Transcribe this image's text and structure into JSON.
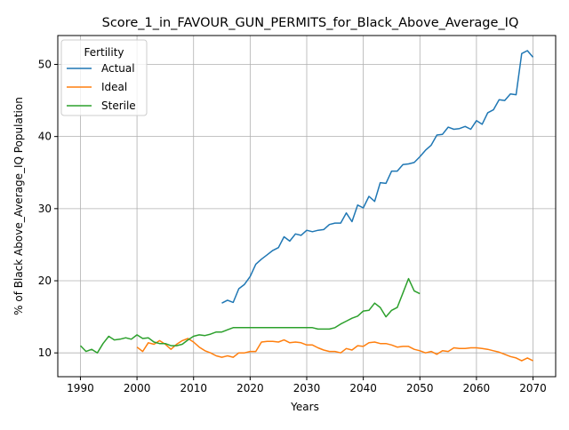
{
  "chart_data": {
    "type": "line",
    "title": "Score_1_in_FAVOUR_GUN_PERMITS_for_Black_Above_Average_IQ",
    "xlabel": "Years",
    "ylabel": "% of Black Above_Average_IQ Population",
    "xlim": [
      1986,
      2074
    ],
    "ylim": [
      6.7,
      54
    ],
    "xticks": [
      1990,
      2000,
      2010,
      2020,
      2030,
      2040,
      2050,
      2060,
      2070
    ],
    "yticks": [
      10,
      20,
      30,
      40,
      50
    ],
    "grid": true,
    "legend": {
      "title": "Fertility",
      "position": "top-left"
    },
    "series": [
      {
        "name": "Actual",
        "color": "#1f77b4",
        "x": [
          2015,
          2016,
          2017,
          2018,
          2019,
          2020,
          2021,
          2022,
          2023,
          2024,
          2025,
          2026,
          2027,
          2028,
          2029,
          2030,
          2031,
          2032,
          2033,
          2034,
          2035,
          2036,
          2037,
          2038,
          2039,
          2040,
          2041,
          2042,
          2043,
          2044,
          2045,
          2046,
          2047,
          2048,
          2049,
          2050,
          2051,
          2052,
          2053,
          2054,
          2055,
          2056,
          2057,
          2058,
          2059,
          2060,
          2061,
          2062,
          2063,
          2064,
          2065,
          2066,
          2067,
          2068,
          2069,
          2070
        ],
        "y": [
          16.9,
          17.3,
          17.0,
          18.9,
          19.5,
          20.6,
          22.3,
          23.0,
          23.6,
          24.2,
          24.6,
          26.1,
          25.5,
          26.5,
          26.3,
          27.0,
          26.8,
          27.0,
          27.1,
          27.8,
          28.0,
          28.0,
          29.4,
          28.2,
          30.5,
          30.1,
          31.7,
          31.0,
          33.6,
          33.5,
          35.2,
          35.2,
          36.1,
          36.2,
          36.4,
          37.2,
          38.1,
          38.8,
          40.2,
          40.3,
          41.3,
          41.0,
          41.1,
          41.4,
          41.0,
          42.2,
          41.7,
          43.3,
          43.7,
          45.1,
          45.0,
          45.9,
          45.8,
          51.5,
          51.9,
          51.0
        ]
      },
      {
        "name": "Ideal",
        "color": "#ff7f0e",
        "x": [
          2000,
          2001,
          2002,
          2003,
          2004,
          2005,
          2006,
          2007,
          2008,
          2009,
          2010,
          2011,
          2012,
          2013,
          2014,
          2015,
          2016,
          2017,
          2018,
          2019,
          2020,
          2021,
          2022,
          2023,
          2024,
          2025,
          2026,
          2027,
          2028,
          2029,
          2030,
          2031,
          2032,
          2033,
          2034,
          2035,
          2036,
          2037,
          2038,
          2039,
          2040,
          2041,
          2042,
          2043,
          2044,
          2045,
          2046,
          2047,
          2048,
          2049,
          2050,
          2051,
          2052,
          2053,
          2054,
          2055,
          2056,
          2057,
          2058,
          2059,
          2060,
          2061,
          2062,
          2063,
          2064,
          2065,
          2066,
          2067,
          2068,
          2069,
          2070
        ],
        "y": [
          10.8,
          10.2,
          11.4,
          11.2,
          11.7,
          11.2,
          10.5,
          11.2,
          11.7,
          12.0,
          11.5,
          10.8,
          10.3,
          10.0,
          9.6,
          9.4,
          9.6,
          9.4,
          10.0,
          10.0,
          10.2,
          10.2,
          11.5,
          11.6,
          11.6,
          11.5,
          11.8,
          11.4,
          11.5,
          11.4,
          11.1,
          11.1,
          10.7,
          10.4,
          10.2,
          10.2,
          10.0,
          10.6,
          10.4,
          11.0,
          10.9,
          11.4,
          11.5,
          11.3,
          11.3,
          11.1,
          10.8,
          10.9,
          10.9,
          10.5,
          10.3,
          10.0,
          10.2,
          9.8,
          10.3,
          10.2,
          10.7,
          10.6,
          10.6,
          10.7,
          10.7,
          10.6,
          10.5,
          10.3,
          10.1,
          9.8,
          9.5,
          9.3,
          8.9,
          9.3,
          8.9
        ]
      },
      {
        "name": "Sterile",
        "color": "#2ca02c",
        "x": [
          1990,
          1991,
          1992,
          1993,
          1994,
          1995,
          1996,
          1997,
          1998,
          1999,
          2000,
          2001,
          2002,
          2003,
          2004,
          2005,
          2006,
          2007,
          2008,
          2009,
          2010,
          2011,
          2012,
          2013,
          2014,
          2015,
          2016,
          2017,
          2018,
          2019,
          2020,
          2021,
          2022,
          2023,
          2024,
          2025,
          2026,
          2027,
          2028,
          2029,
          2030,
          2031,
          2032,
          2033,
          2034,
          2035,
          2036,
          2037,
          2038,
          2039,
          2040,
          2041,
          2042,
          2043,
          2044,
          2045,
          2046,
          2047,
          2048,
          2049,
          2050
        ],
        "y": [
          11.0,
          10.2,
          10.5,
          10.0,
          11.3,
          12.3,
          11.8,
          11.9,
          12.1,
          11.9,
          12.5,
          12.0,
          12.1,
          11.5,
          11.3,
          11.3,
          11.0,
          11.0,
          11.2,
          11.8,
          12.3,
          12.5,
          12.4,
          12.6,
          12.9,
          12.9,
          13.2,
          13.5,
          13.5,
          13.5,
          13.5,
          13.5,
          13.5,
          13.5,
          13.5,
          13.5,
          13.5,
          13.5,
          13.5,
          13.5,
          13.5,
          13.5,
          13.3,
          13.3,
          13.3,
          13.5,
          14.0,
          14.4,
          14.8,
          15.1,
          15.8,
          15.9,
          16.9,
          16.3,
          15.0,
          15.9,
          16.3,
          18.3,
          20.3,
          18.6,
          18.2
        ]
      }
    ]
  }
}
